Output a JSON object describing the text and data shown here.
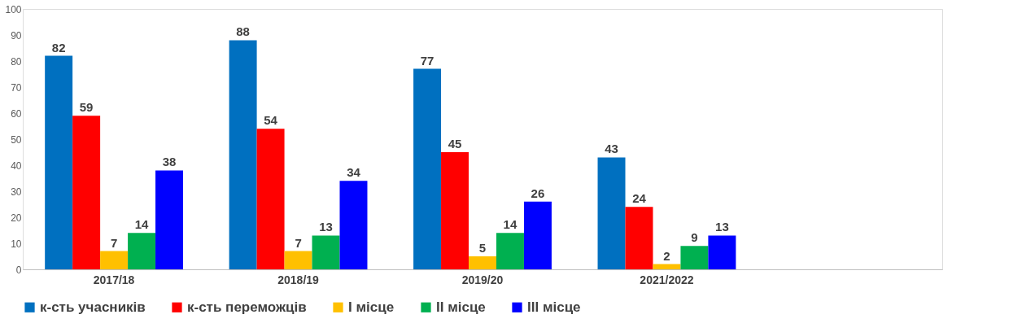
{
  "chart_data": {
    "type": "bar",
    "categories": [
      "2017/18",
      "2018/19",
      "2019/20",
      "2021/2022",
      null
    ],
    "series": [
      {
        "name": "к-сть учасників",
        "color": "#0070c0",
        "values": [
          82,
          88,
          77,
          43,
          null
        ]
      },
      {
        "name": "к-сть переможців",
        "color": "#ff0000",
        "values": [
          59,
          54,
          45,
          24,
          null
        ]
      },
      {
        "name": "I місце",
        "color": "#ffc000",
        "values": [
          7,
          7,
          5,
          2,
          null
        ]
      },
      {
        "name": "II місце",
        "color": "#00b050",
        "values": [
          14,
          13,
          14,
          9,
          null
        ]
      },
      {
        "name": "III місце",
        "color": "#0000ff",
        "values": [
          38,
          34,
          26,
          13,
          null
        ]
      }
    ],
    "ylim": [
      0,
      100
    ],
    "yticks": [
      0,
      10,
      20,
      30,
      40,
      50,
      60,
      70,
      80,
      90,
      100
    ],
    "data_labels": true,
    "grid": false,
    "legend": "bottom"
  }
}
